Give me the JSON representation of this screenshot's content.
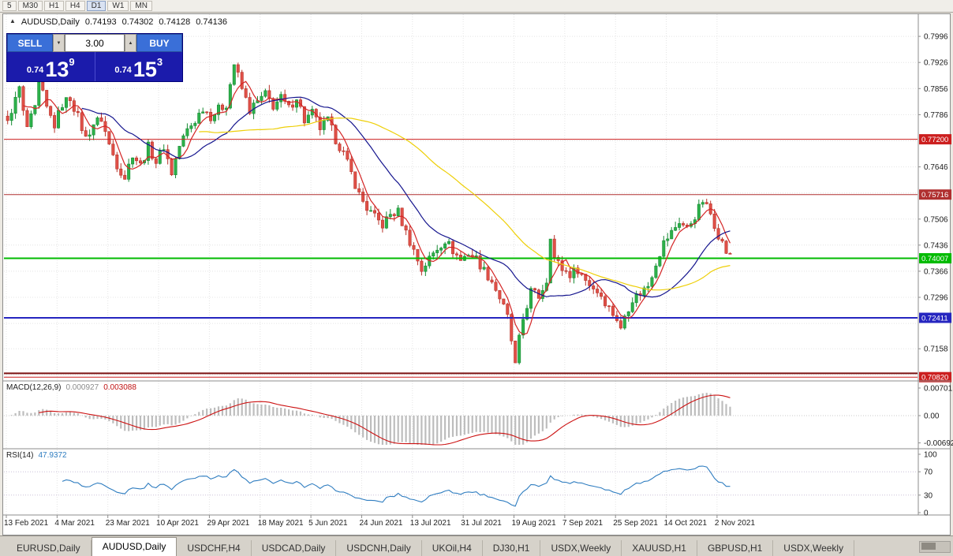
{
  "toolbar": {
    "timeframes": [
      "5",
      "M30",
      "H1",
      "H4",
      "D1",
      "W1",
      "MN"
    ],
    "active": "D1"
  },
  "title_bar": {
    "collapse_arrow": "▲",
    "symbol": "AUDUSD,Daily",
    "open": "0.74193",
    "high": "0.74302",
    "low": "0.74128",
    "close": "0.74136"
  },
  "trade_panel": {
    "sell_label": "SELL",
    "buy_label": "BUY",
    "volume": "3.00",
    "spin_up": "▲",
    "spin_down": "▼",
    "bid": {
      "prefix": "0.74",
      "big": "13",
      "pip": "9"
    },
    "ask": {
      "prefix": "0.74",
      "big": "15",
      "pip": "3"
    },
    "colors": {
      "panel_bg": "#1b1bab",
      "button_bg": "#3a6fd8"
    }
  },
  "chart_data": {
    "type": "candlestick",
    "symbol": "AUDUSD",
    "timeframe": "Daily",
    "ohlc_current": {
      "open": 0.74193,
      "high": 0.74302,
      "low": 0.74128,
      "close": 0.74136
    },
    "candle_count": 186,
    "last_close": 0.74136,
    "price_axis": {
      "top_price": 0.8009,
      "bottom_price": 0.7076,
      "grid_prices": [
        0.7996,
        0.7926,
        0.7856,
        0.7786,
        0.7716,
        0.7646,
        0.7576,
        0.7506,
        0.7436,
        0.7366,
        0.7296,
        0.7226,
        0.7158,
        0.7088
      ],
      "visible_labels": [
        "0.7996",
        "0.7926",
        "0.7856",
        "0.7786",
        "0.7646",
        "0.7506",
        "0.7436",
        "0.7366",
        "0.7296",
        "0.7158"
      ]
    },
    "levels": [
      {
        "price": 0.772,
        "label": "0.77200",
        "color": "#cc1f1f",
        "width": 1
      },
      {
        "price": 0.75716,
        "label": "0.75716",
        "color": "#b03030",
        "width": 1
      },
      {
        "price": 0.74007,
        "label": "0.74007",
        "color": "#00bb00",
        "width": 2
      },
      {
        "price": 0.72411,
        "label": "0.72411",
        "color": "#2525c0",
        "width": 2
      },
      {
        "price": 0.7092,
        "label": null,
        "color": "#7c1212",
        "width": 2
      },
      {
        "price": 0.7082,
        "label": "0.70820",
        "color": "#cc1f1f",
        "width": 1
      }
    ],
    "close_anchors": [
      [
        0,
        0.7762
      ],
      [
        1,
        0.78
      ],
      [
        2,
        0.7825
      ],
      [
        3,
        0.7858
      ],
      [
        4,
        0.779
      ],
      [
        5,
        0.7752
      ],
      [
        7,
        0.78
      ],
      [
        8,
        0.7865
      ],
      [
        9,
        0.784
      ],
      [
        10,
        0.7802
      ],
      [
        12,
        0.7758
      ],
      [
        14,
        0.7815
      ],
      [
        16,
        0.7832
      ],
      [
        18,
        0.778
      ],
      [
        20,
        0.7722
      ],
      [
        22,
        0.7762
      ],
      [
        24,
        0.7775
      ],
      [
        26,
        0.7705
      ],
      [
        28,
        0.7652
      ],
      [
        30,
        0.7618
      ],
      [
        32,
        0.7682
      ],
      [
        34,
        0.765
      ],
      [
        36,
        0.77
      ],
      [
        38,
        0.766
      ],
      [
        40,
        0.7702
      ],
      [
        42,
        0.763
      ],
      [
        44,
        0.7702
      ],
      [
        46,
        0.7745
      ],
      [
        48,
        0.777
      ],
      [
        50,
        0.7805
      ],
      [
        52,
        0.7782
      ],
      [
        54,
        0.78
      ],
      [
        56,
        0.7815
      ],
      [
        58,
        0.7922
      ],
      [
        59,
        0.789
      ],
      [
        60,
        0.7855
      ],
      [
        62,
        0.7798
      ],
      [
        64,
        0.782
      ],
      [
        66,
        0.784
      ],
      [
        68,
        0.781
      ],
      [
        70,
        0.783
      ],
      [
        72,
        0.7802
      ],
      [
        74,
        0.7835
      ],
      [
        76,
        0.777
      ],
      [
        78,
        0.779
      ],
      [
        80,
        0.775
      ],
      [
        82,
        0.777
      ],
      [
        84,
        0.772
      ],
      [
        86,
        0.7682
      ],
      [
        88,
        0.7628
      ],
      [
        90,
        0.7572
      ],
      [
        92,
        0.7535
      ],
      [
        94,
        0.751
      ],
      [
        96,
        0.749
      ],
      [
        98,
        0.7518
      ],
      [
        100,
        0.7525
      ],
      [
        102,
        0.747
      ],
      [
        104,
        0.7422
      ],
      [
        106,
        0.737
      ],
      [
        108,
        0.74
      ],
      [
        110,
        0.7428
      ],
      [
        112,
        0.745
      ],
      [
        114,
        0.7422
      ],
      [
        116,
        0.7395
      ],
      [
        118,
        0.7415
      ],
      [
        120,
        0.74
      ],
      [
        122,
        0.7368
      ],
      [
        124,
        0.734
      ],
      [
        126,
        0.7295
      ],
      [
        128,
        0.7242
      ],
      [
        129,
        0.718
      ],
      [
        130,
        0.7112
      ],
      [
        131,
        0.7182
      ],
      [
        132,
        0.7238
      ],
      [
        134,
        0.7312
      ],
      [
        136,
        0.7298
      ],
      [
        138,
        0.7342
      ],
      [
        139,
        0.7465
      ],
      [
        140,
        0.7402
      ],
      [
        142,
        0.7372
      ],
      [
        144,
        0.7358
      ],
      [
        146,
        0.7372
      ],
      [
        148,
        0.7342
      ],
      [
        150,
        0.7322
      ],
      [
        152,
        0.7302
      ],
      [
        154,
        0.7268
      ],
      [
        156,
        0.7238
      ],
      [
        157,
        0.7208
      ],
      [
        158,
        0.7248
      ],
      [
        160,
        0.7292
      ],
      [
        162,
        0.7308
      ],
      [
        164,
        0.7328
      ],
      [
        166,
        0.739
      ],
      [
        168,
        0.7442
      ],
      [
        170,
        0.747
      ],
      [
        172,
        0.75
      ],
      [
        174,
        0.748
      ],
      [
        176,
        0.7515
      ],
      [
        178,
        0.7555
      ],
      [
        180,
        0.752
      ],
      [
        182,
        0.7465
      ],
      [
        184,
        0.7418
      ],
      [
        185,
        0.74136
      ]
    ],
    "moving_averages": [
      {
        "period": 5,
        "color": "#d42525"
      },
      {
        "period": 20,
        "color": "#15158e"
      },
      {
        "period": 50,
        "color": "#eecf08"
      }
    ],
    "dates": [
      "13 Feb 2021",
      "4 Mar 2021",
      "23 Mar 2021",
      "10 Apr 2021",
      "29 Apr 2021",
      "18 May 2021",
      "5 Jun 2021",
      "24 Jun 2021",
      "13 Jul 2021",
      "31 Jul 2021",
      "19 Aug 2021",
      "7 Sep 2021",
      "25 Sep 2021",
      "14 Oct 2021",
      "2 Nov 2021"
    ],
    "macd": {
      "name": "MACD(12,26,9)",
      "value_main": "0.000927",
      "value_signal": "0.003088",
      "axis_labels": [
        "0.00701",
        "0.00",
        "-0.00692"
      ],
      "histogram_color": "#bdbdbd",
      "signal_color": "#cc1111"
    },
    "rsi": {
      "name": "RSI(14)",
      "value": "47.9372",
      "axis_labels": [
        "100",
        "70",
        "30",
        "0"
      ],
      "guide_levels": [
        70,
        30
      ],
      "line_color": "#2f7dc0"
    }
  },
  "tabs": {
    "items": [
      {
        "label": "EURUSD,Daily",
        "active": false
      },
      {
        "label": "AUDUSD,Daily",
        "active": true
      },
      {
        "label": "USDCHF,H4",
        "active": false
      },
      {
        "label": "USDCAD,Daily",
        "active": false
      },
      {
        "label": "USDCNH,Daily",
        "active": false
      },
      {
        "label": "UKOil,H4",
        "active": false
      },
      {
        "label": "DJ30,H1",
        "active": false
      },
      {
        "label": "USDX,Weekly",
        "active": false
      },
      {
        "label": "XAUUSD,H1",
        "active": false
      },
      {
        "label": "GBPUSD,H1",
        "active": false
      },
      {
        "label": "USDX,Weekly",
        "active": false
      }
    ]
  }
}
